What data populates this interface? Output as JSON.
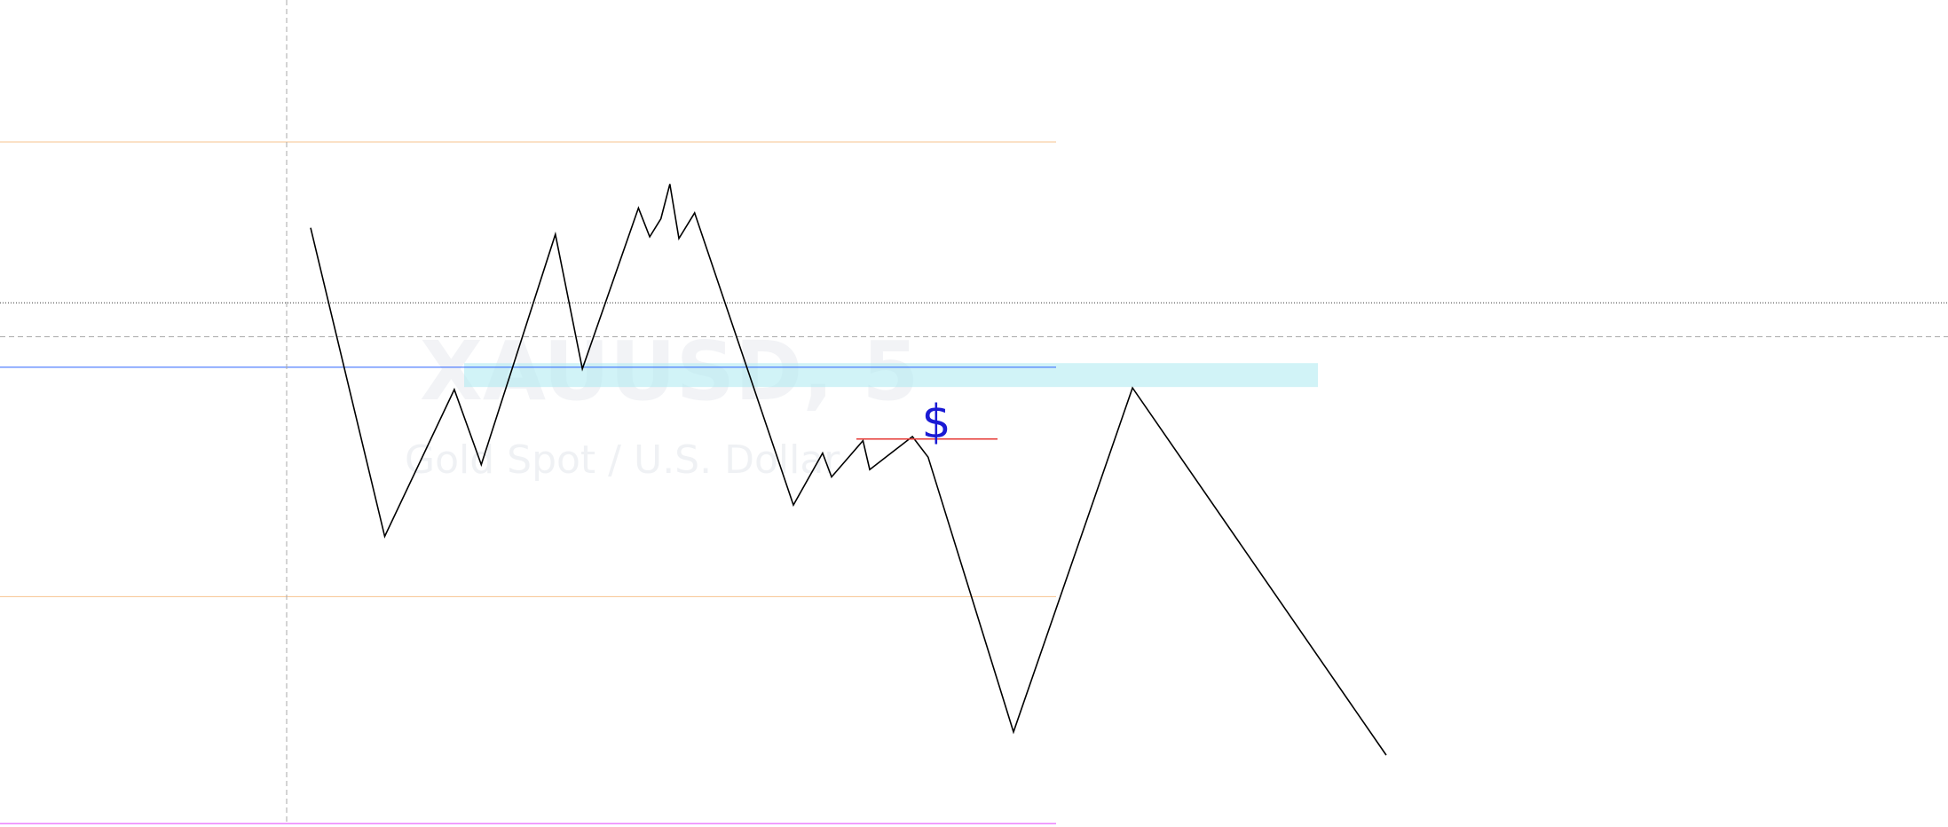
{
  "chart_data": {
    "type": "line",
    "watermark": {
      "symbol": "XAUUSD, 5",
      "description": "Gold Spot / U.S. Dollar"
    },
    "price_range": [
      0,
      100
    ],
    "series": [
      {
        "color": "#000000",
        "points": [
          [
            0,
            72.4
          ],
          [
            1,
            35.0
          ],
          [
            2,
            52.8
          ],
          [
            3,
            43.7
          ],
          [
            4,
            71.6
          ],
          [
            5,
            55.3
          ],
          [
            6,
            74.8
          ],
          [
            7,
            71.3
          ],
          [
            8,
            73.5
          ],
          [
            9,
            77.7
          ],
          [
            10,
            71.1
          ],
          [
            11,
            74.2
          ],
          [
            12,
            38.8
          ],
          [
            13,
            45.1
          ],
          [
            14,
            42.2
          ],
          [
            15,
            46.6
          ],
          [
            16,
            43.1
          ],
          [
            17,
            47.1
          ],
          [
            18,
            44.6
          ],
          [
            19,
            11.3
          ],
          [
            20,
            53.0
          ],
          [
            21,
            8.5
          ]
        ]
      }
    ],
    "time_positions": [
      0,
      3.3,
      6.4,
      7.6,
      10.9,
      12.1,
      14.6,
      15.1,
      15.6,
      16.0,
      16.4,
      17.1,
      21.5,
      22.8,
      23.2,
      24.6,
      24.9,
      26.8,
      27.5,
      31.3,
      36.6,
      47.9
    ],
    "horizontal_lines": [
      {
        "price": 82.8,
        "color": "#f7c38f",
        "style": "solid",
        "extent": "partial"
      },
      {
        "price": 63.3,
        "color": "#333333",
        "style": "dotted",
        "extent": "full"
      },
      {
        "price": 59.2,
        "color": "#aaaaaa",
        "style": "dashed",
        "extent": "full"
      },
      {
        "price": 55.5,
        "color": "#2962ff",
        "style": "solid",
        "extent": "partial"
      },
      {
        "price": 27.7,
        "color": "#f7c38f",
        "style": "solid",
        "extent": "partial"
      },
      {
        "price": 0.2,
        "color": "#e040fb",
        "style": "solid",
        "extent": "partial"
      }
    ],
    "zone": {
      "price_top": 56.0,
      "price_bottom": 53.1,
      "color": "#b2ebf2"
    },
    "marker_line": {
      "price": 46.8,
      "color": "#e53935"
    },
    "marker_icon": {
      "name": "dollar-sign-icon",
      "glyph": "$",
      "color": "#1a1ad4"
    },
    "vertical_line": {
      "color": "#aaaaaa",
      "style": "dashed"
    }
  }
}
